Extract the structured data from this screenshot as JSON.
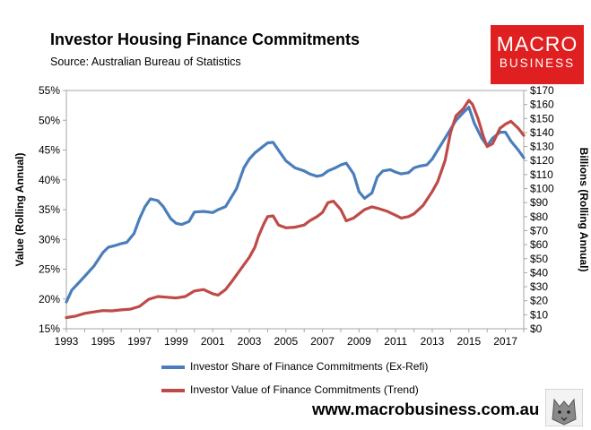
{
  "header": {
    "title": "Investor Housing Finance Commitments",
    "subtitle": "Source: Australian Bureau of Statistics"
  },
  "logo": {
    "line1": "MACRO",
    "line2": "BUSINESS"
  },
  "footer": {
    "url": "www.macrobusiness.com.au"
  },
  "colors": {
    "share": "#4a7ebb",
    "value": "#be4b48"
  },
  "chart_data": {
    "type": "line",
    "title": "Investor Housing Finance Commitments",
    "ylabel_left": "Value (Rolling Annual)",
    "ylabel_right": "Billions (Rolling Annual)",
    "xlim": [
      1993,
      2018
    ],
    "ylim_left": [
      15,
      55
    ],
    "ylim_right": [
      0,
      170
    ],
    "x_ticks": [
      "1993",
      "1995",
      "1997",
      "1999",
      "2001",
      "2003",
      "2005",
      "2007",
      "2009",
      "2011",
      "2013",
      "2015",
      "2017"
    ],
    "y_ticks_left": [
      "15%",
      "20%",
      "25%",
      "30%",
      "35%",
      "40%",
      "45%",
      "50%",
      "55%"
    ],
    "y_ticks_right": [
      "$0",
      "$10",
      "$20",
      "$30",
      "$40",
      "$50",
      "$60",
      "$70",
      "$80",
      "$90",
      "$100",
      "$110",
      "$120",
      "$130",
      "$140",
      "$150",
      "$160",
      "$170"
    ],
    "legend": [
      "Investor Share of Finance Commitments (Ex-Refi)",
      "Investor Value of Finance Commitments (Trend)"
    ],
    "series": [
      {
        "name": "Investor Share of Finance Commitments (Ex-Refi)",
        "axis": "left",
        "x": [
          1993.0,
          1993.3,
          1993.7,
          1994.0,
          1994.5,
          1995.0,
          1995.3,
          1995.7,
          1996.0,
          1996.3,
          1996.7,
          1997.0,
          1997.3,
          1997.6,
          1998.0,
          1998.3,
          1998.7,
          1999.0,
          1999.3,
          1999.7,
          2000.0,
          2000.5,
          2001.0,
          2001.3,
          2001.7,
          2002.0,
          2002.3,
          2002.7,
          2003.0,
          2003.3,
          2003.7,
          2004.0,
          2004.3,
          2004.7,
          2005.0,
          2005.5,
          2006.0,
          2006.3,
          2006.7,
          2007.0,
          2007.3,
          2007.7,
          2008.0,
          2008.3,
          2008.7,
          2009.0,
          2009.3,
          2009.7,
          2010.0,
          2010.3,
          2010.7,
          2011.0,
          2011.3,
          2011.7,
          2012.0,
          2012.3,
          2012.7,
          2013.0,
          2013.3,
          2013.7,
          2014.0,
          2014.3,
          2014.7,
          2015.0,
          2015.3,
          2015.7,
          2016.0,
          2016.3,
          2016.7,
          2017.0,
          2017.3,
          2017.7,
          2018.0
        ],
        "y": [
          19.5,
          21.5,
          22.8,
          23.8,
          25.5,
          27.8,
          28.7,
          29.0,
          29.3,
          29.5,
          31.0,
          33.5,
          35.5,
          36.8,
          36.5,
          35.5,
          33.5,
          32.7,
          32.5,
          33.0,
          34.6,
          34.7,
          34.5,
          35.0,
          35.5,
          37.0,
          38.5,
          42.0,
          43.5,
          44.5,
          45.5,
          46.2,
          46.3,
          44.5,
          43.2,
          42.0,
          41.5,
          41.0,
          40.6,
          40.8,
          41.5,
          42.0,
          42.5,
          42.8,
          41.0,
          38.0,
          36.9,
          37.8,
          40.5,
          41.5,
          41.7,
          41.3,
          41.0,
          41.2,
          42.0,
          42.3,
          42.5,
          43.5,
          45.0,
          47.0,
          48.5,
          50.0,
          51.3,
          52.2,
          49.5,
          47.0,
          45.7,
          47.0,
          48.0,
          48.0,
          46.5,
          45.0,
          43.7
        ]
      },
      {
        "name": "Investor Value of Finance Commitments (Trend)",
        "axis": "right",
        "x": [
          1993.0,
          1993.5,
          1994.0,
          1994.5,
          1995.0,
          1995.5,
          1996.0,
          1996.5,
          1997.0,
          1997.5,
          1998.0,
          1998.5,
          1999.0,
          1999.5,
          2000.0,
          2000.5,
          2001.0,
          2001.3,
          2001.7,
          2002.0,
          2002.5,
          2003.0,
          2003.3,
          2003.5,
          2003.8,
          2004.0,
          2004.3,
          2004.6,
          2005.0,
          2005.5,
          2006.0,
          2006.3,
          2006.7,
          2007.0,
          2007.3,
          2007.6,
          2008.0,
          2008.3,
          2008.7,
          2009.0,
          2009.3,
          2009.7,
          2010.0,
          2010.5,
          2011.0,
          2011.3,
          2011.7,
          2012.0,
          2012.5,
          2013.0,
          2013.3,
          2013.7,
          2014.0,
          2014.3,
          2014.7,
          2015.0,
          2015.2,
          2015.5,
          2015.8,
          2016.0,
          2016.3,
          2016.7,
          2017.0,
          2017.3,
          2017.7,
          2018.0
        ],
        "y": [
          8,
          9,
          11,
          12,
          13,
          12.8,
          13.5,
          14,
          16,
          21,
          23,
          22.5,
          22,
          23,
          27,
          28,
          25,
          24,
          28,
          33,
          42,
          51,
          58,
          66,
          75,
          80,
          80.5,
          74,
          72,
          72.5,
          74,
          77,
          80,
          83,
          90,
          91,
          85,
          77,
          79,
          82,
          85,
          87,
          86,
          84,
          81,
          79,
          80,
          82,
          88,
          98,
          105,
          120,
          140,
          152,
          157,
          163,
          160,
          150,
          137,
          130,
          132,
          143,
          146,
          148,
          143,
          138
        ]
      }
    ]
  }
}
